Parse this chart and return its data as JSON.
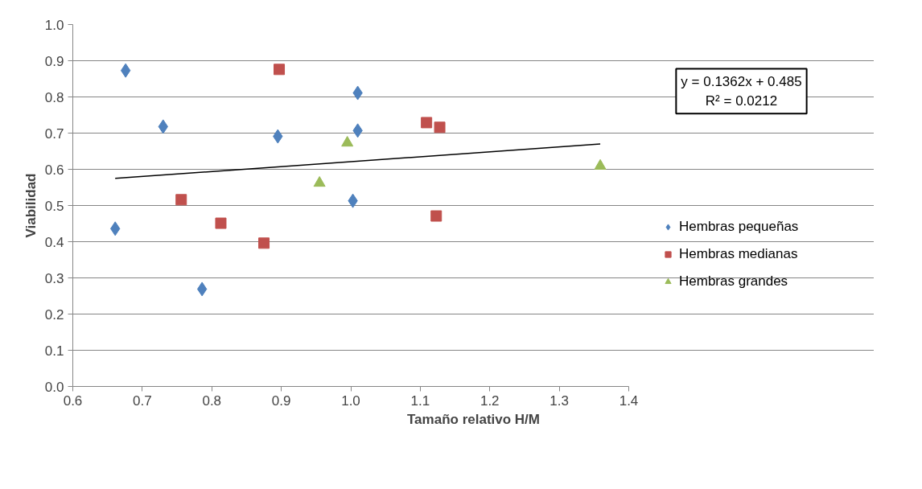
{
  "chart_data": {
    "type": "scatter",
    "xlabel": "Tamaño relativo H/M",
    "ylabel": "Viabilidad",
    "xlim": [
      0.6,
      1.4
    ],
    "xticks": [
      {
        "value": 0.6,
        "label": "0.6"
      },
      {
        "value": 0.7,
        "label": "0.7"
      },
      {
        "value": 0.8,
        "label": "0.8"
      },
      {
        "value": 0.9,
        "label": "0.9"
      },
      {
        "value": 1.0,
        "label": "1.0"
      },
      {
        "value": 1.1,
        "label": "1.1"
      },
      {
        "value": 1.2,
        "label": "1.2"
      },
      {
        "value": 1.3,
        "label": "1.3"
      },
      {
        "value": 1.4,
        "label": "1.4"
      }
    ],
    "ylim": [
      0,
      1
    ],
    "yticks": [
      {
        "value": 0,
        "label": "0.0"
      },
      {
        "value": 0.1,
        "label": "0.1"
      },
      {
        "value": 0.2,
        "label": "0.2"
      },
      {
        "value": 0.3,
        "label": "0.3"
      },
      {
        "value": 0.4,
        "label": "0.4"
      },
      {
        "value": 0.5,
        "label": "0.5"
      },
      {
        "value": 0.6,
        "label": "0.6"
      },
      {
        "value": 0.7,
        "label": "0.7"
      },
      {
        "value": 0.8,
        "label": "0.8"
      },
      {
        "value": 0.9,
        "label": "0.9"
      },
      {
        "value": 1.0,
        "label": "1.0"
      }
    ],
    "grid": "y",
    "legend": "right",
    "series": [
      {
        "name": "Hembras pequeñas",
        "color": "#4f81bd",
        "marker": "diamond",
        "x": [
          0.676,
          0.73,
          1.01,
          0.895,
          1.01,
          1.003,
          0.661,
          0.786
        ],
        "values": [
          0.873,
          0.718,
          0.811,
          0.691,
          0.707,
          0.513,
          0.436,
          0.269
        ]
      },
      {
        "name": "Hembras medianas",
        "color": "#c0504d",
        "marker": "square",
        "x": [
          0.897,
          1.109,
          1.128,
          0.756,
          0.813,
          0.875,
          1.123
        ],
        "values": [
          0.876,
          0.729,
          0.716,
          0.516,
          0.451,
          0.396,
          0.471
        ]
      },
      {
        "name": "Hembras grandes",
        "color": "#9bbb59",
        "marker": "triangle",
        "x": [
          0.995,
          0.955,
          1.359
        ],
        "values": [
          0.673,
          0.562,
          0.609
        ]
      },
      {
        "type": "line",
        "color": "#000000",
        "x": [
          0.661,
          1.359
        ],
        "values": [
          0.575,
          0.67
        ]
      }
    ],
    "annotations": [
      "y = 0.1362x + 0.485\nR² = 0.0212"
    ]
  }
}
